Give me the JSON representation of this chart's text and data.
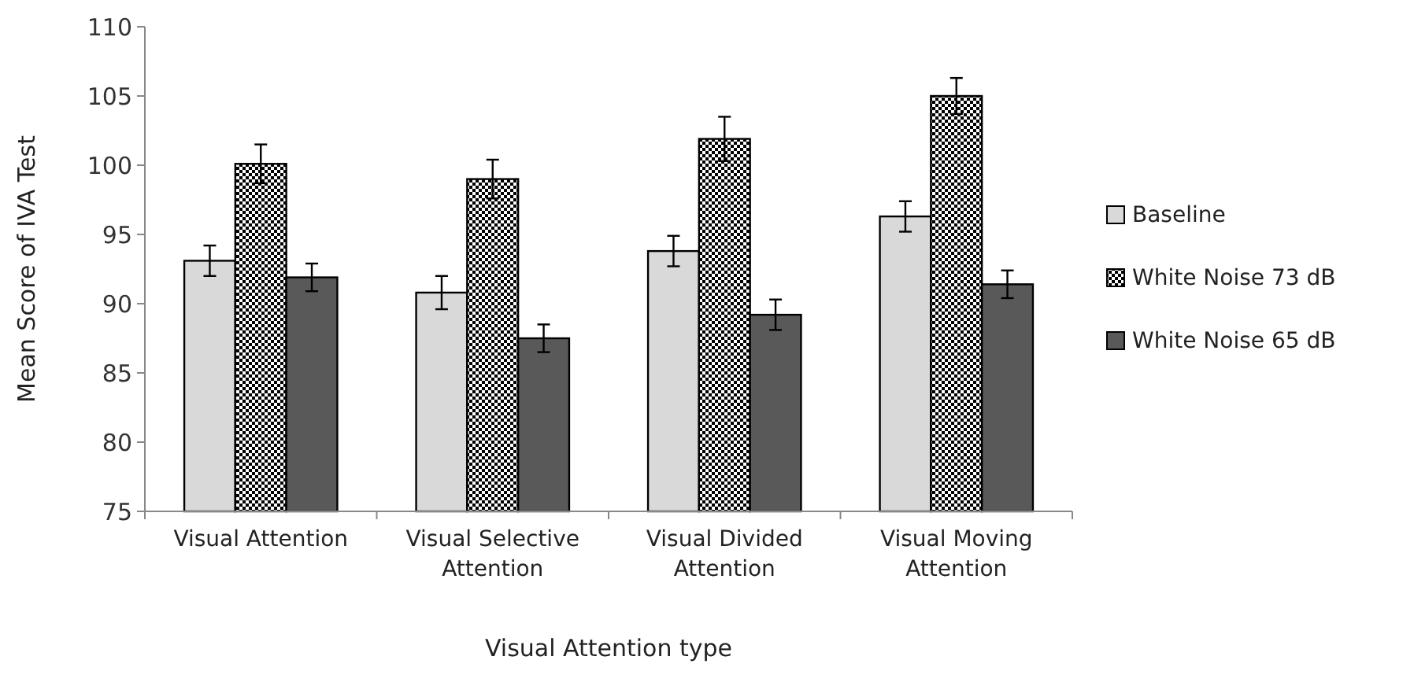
{
  "chart_data": {
    "type": "bar",
    "xlabel": "Visual Attention type",
    "ylabel": "Mean Score of IVA Test",
    "categories": [
      "Visual Attention",
      "Visual Selective Attention",
      "Visual Divided Attention",
      "Visual Moving Attention"
    ],
    "series": [
      {
        "name": "Baseline",
        "color": "#d9d9d9",
        "values": [
          93.1,
          90.8,
          93.8,
          96.3
        ],
        "errors": [
          1.1,
          1.2,
          1.1,
          1.1
        ]
      },
      {
        "name": "White Noise 73 dB",
        "color": "#000000",
        "values": [
          100.1,
          99.0,
          101.9,
          105.0
        ],
        "errors": [
          1.4,
          1.4,
          1.6,
          1.3
        ]
      },
      {
        "name": "White Noise 65 dB",
        "color": "#595959",
        "values": [
          91.9,
          87.5,
          89.2,
          91.4
        ],
        "errors": [
          1.0,
          1.0,
          1.1,
          1.0
        ]
      }
    ],
    "ylim": [
      75,
      110
    ],
    "yticks": [
      75,
      80,
      85,
      90,
      95,
      100,
      105,
      110
    ],
    "grid": false,
    "legend": "right"
  }
}
